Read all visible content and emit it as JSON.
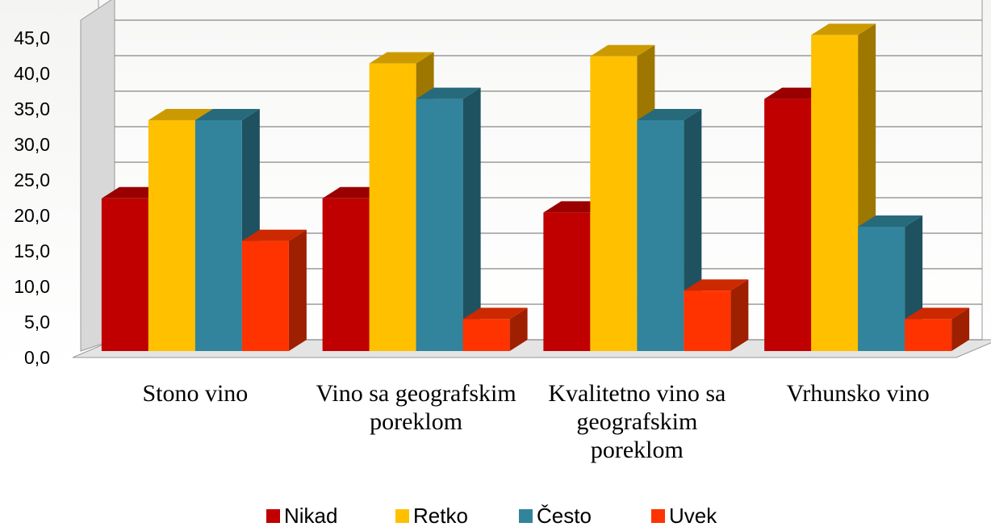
{
  "chart_data": {
    "type": "bar3d",
    "categories": [
      "Stono vino",
      "Vino sa geografskim poreklom",
      "Kvalitetno vino sa geografskim poreklom",
      "Vrhunsko vino"
    ],
    "series": [
      {
        "name": "Nikad",
        "color": "#c00000",
        "values": [
          21.5,
          21.5,
          19.5,
          35.5
        ]
      },
      {
        "name": "Retko",
        "color": "#ffc000",
        "values": [
          32.5,
          40.5,
          41.5,
          44.5
        ]
      },
      {
        "name": "Često",
        "color": "#31849b",
        "values": [
          32.5,
          35.5,
          32.5,
          17.5
        ]
      },
      {
        "name": "Uvek",
        "color": "#ff3300",
        "values": [
          15.5,
          4.5,
          8.5,
          4.5
        ]
      }
    ],
    "ylim": [
      0,
      45
    ],
    "yticks": [
      {
        "value": 0,
        "label": "0,0"
      },
      {
        "value": 5,
        "label": "5,0"
      },
      {
        "value": 10,
        "label": "10,0"
      },
      {
        "value": 15,
        "label": "15,0"
      },
      {
        "value": 20,
        "label": "20,0"
      },
      {
        "value": 25,
        "label": "25,0"
      },
      {
        "value": 30,
        "label": "30,0"
      },
      {
        "value": 35,
        "label": "35,0"
      },
      {
        "value": 40,
        "label": "40,0"
      },
      {
        "value": 45,
        "label": "45,0"
      }
    ],
    "grid": true,
    "legend": "bottom"
  }
}
